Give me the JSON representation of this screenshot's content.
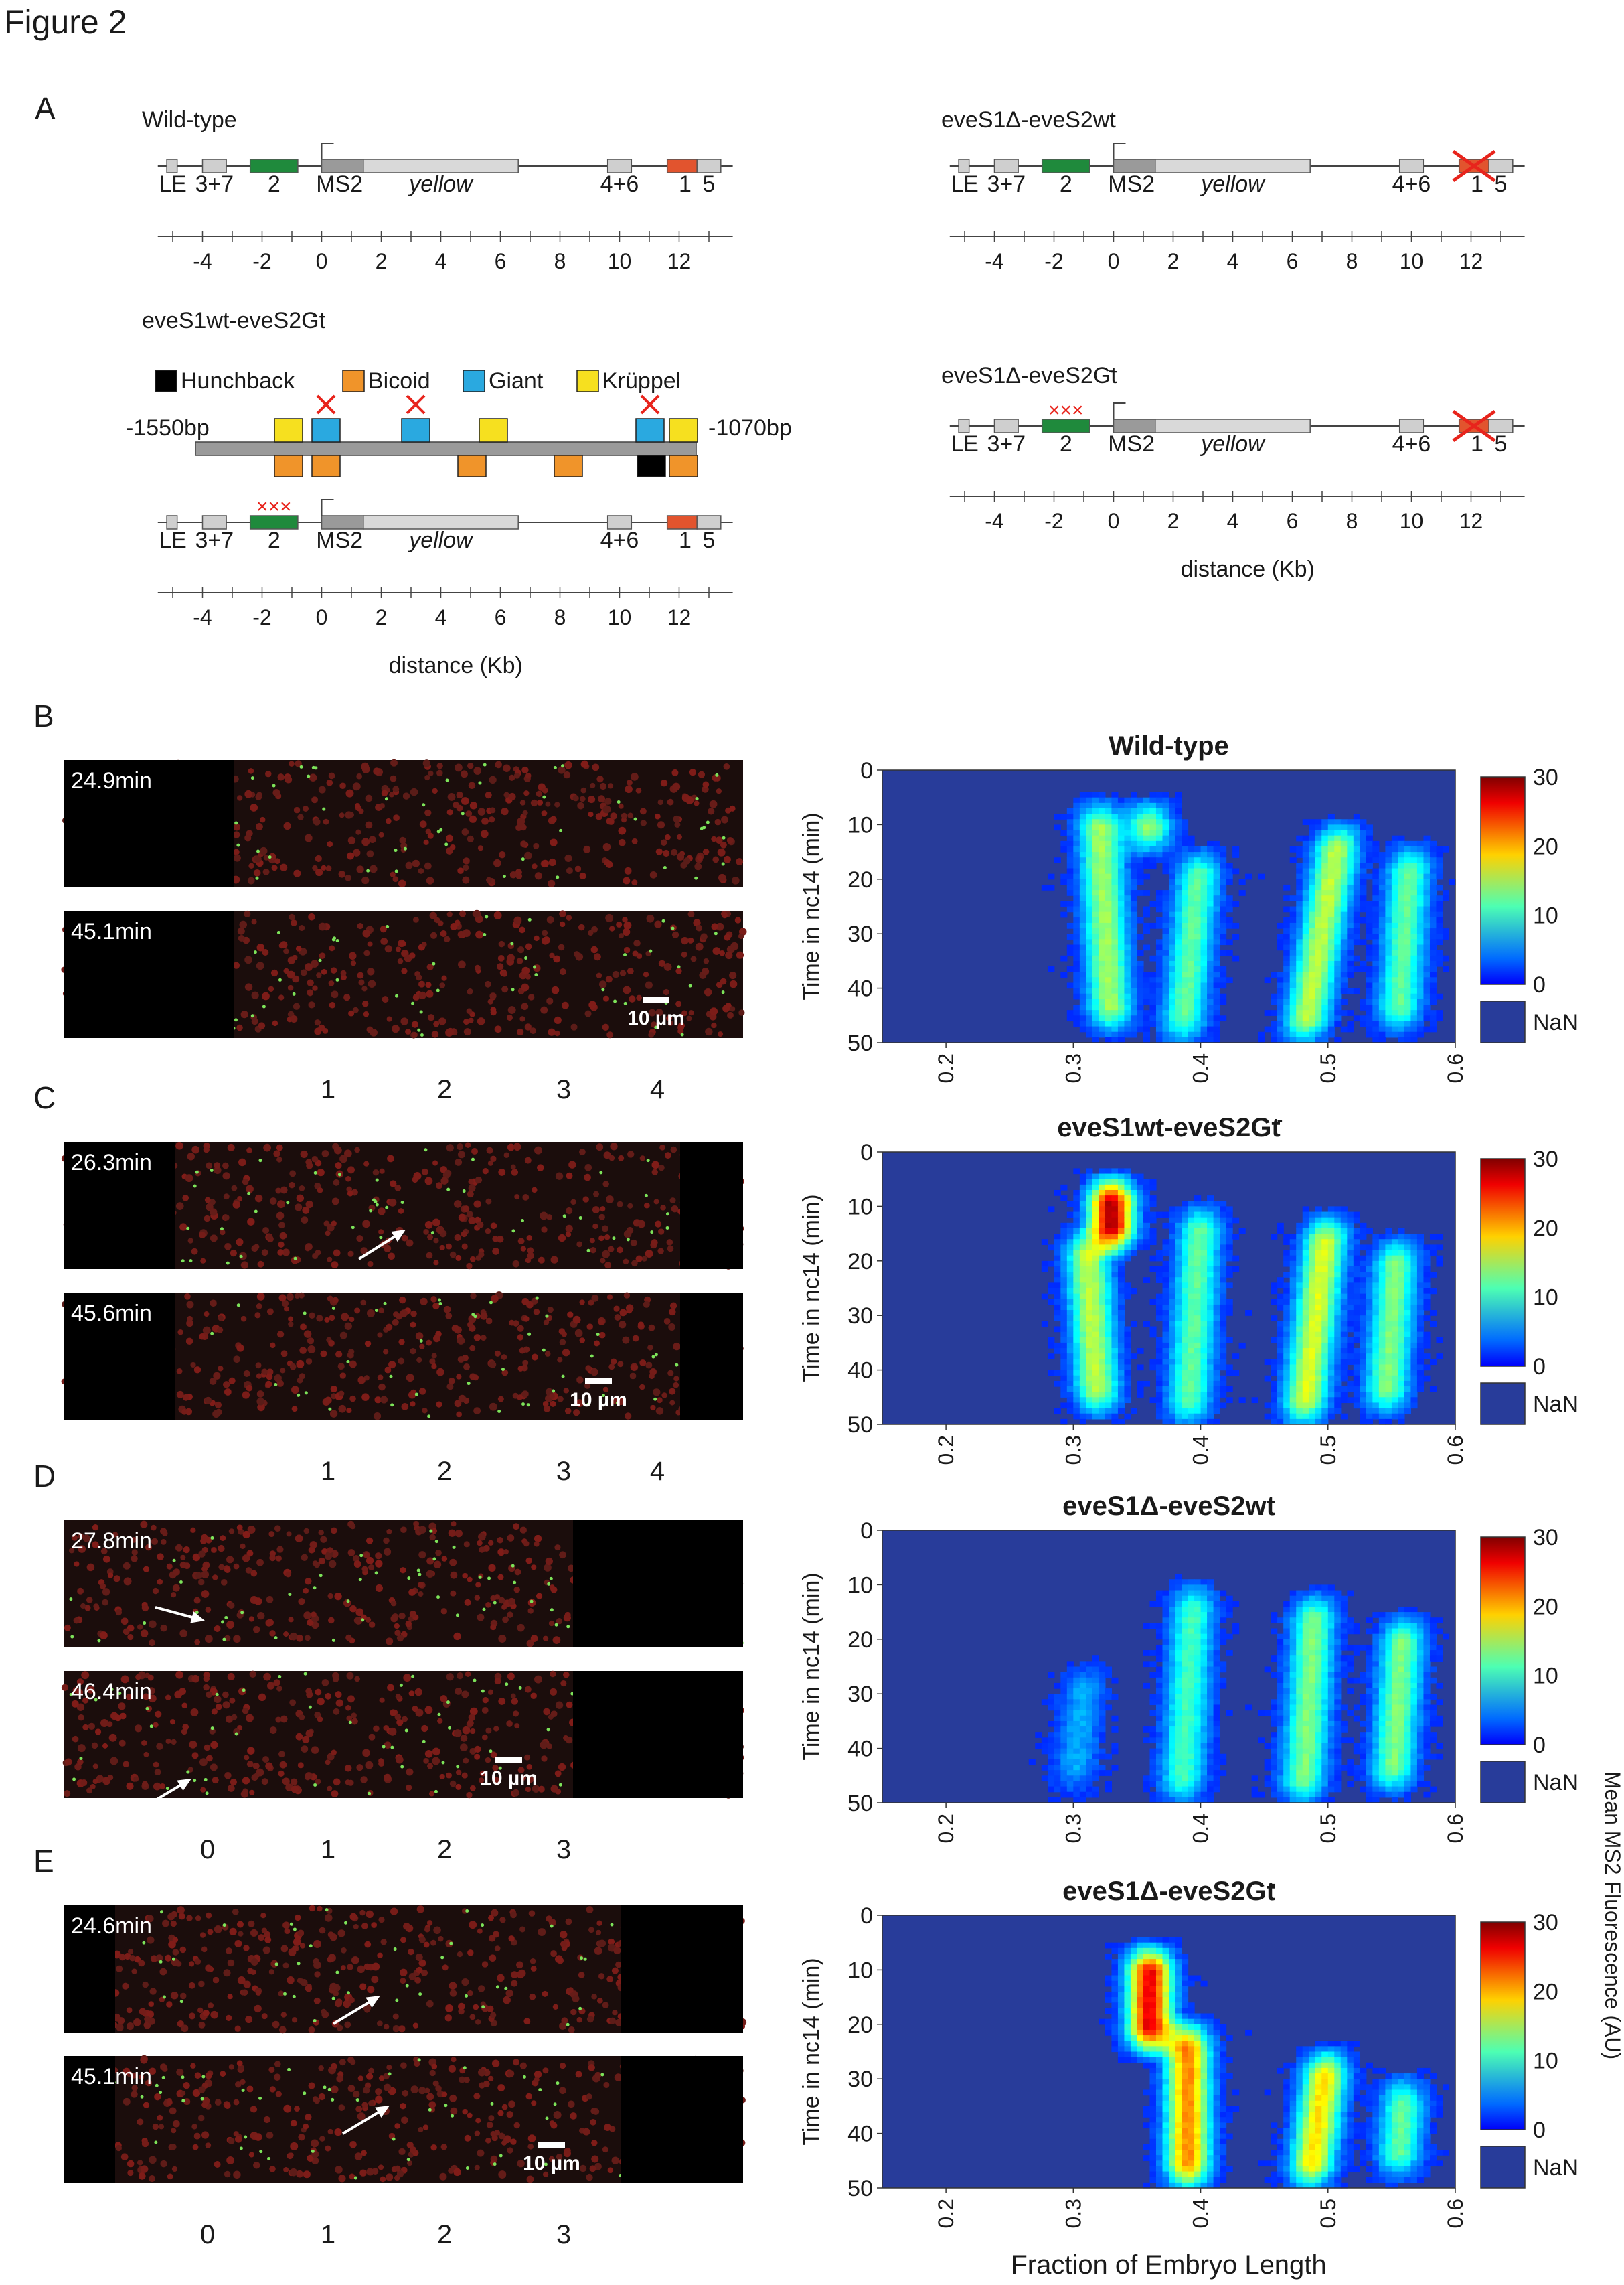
{
  "figure": {
    "title": "Figure 2"
  },
  "colors": {
    "stripe2": "#1f8a3c",
    "stripe1": "#e2542e",
    "enhancer_box": "#cfcfcf",
    "ms2_box": "#9a9a9a",
    "yellow_box": "#d9d9d9",
    "hunchback": "#000000",
    "bicoid": "#f0942a",
    "giant": "#2aa9e0",
    "kruppel": "#f6e01f",
    "cross": "#e8241c",
    "heatmap_bg": "#283c9a",
    "nan_swatch": "#283c9a"
  },
  "panel_a": {
    "letter": "A",
    "wildtype": {
      "title": "Wild-type"
    },
    "s1d_s2wt": {
      "title": "eveS1Δ-eveS2wt"
    },
    "s1wt_s2gt": {
      "title": "eveS1wt-eveS2Gt",
      "title_sup": "-"
    },
    "s1d_s2gt": {
      "title": "eveS1Δ-eveS2Gt",
      "title_sup": "-"
    },
    "gene_labels": {
      "le": "LE",
      "e37": "3+7",
      "e2": "2",
      "ms2": "MS2",
      "yellow": "yellow",
      "e46": "4+6",
      "e1": "1",
      "e5": "5"
    },
    "axis_ticks": [
      "-4",
      "-2",
      "0",
      "2",
      "4",
      "6",
      "8",
      "10",
      "12"
    ],
    "axis_label": "distance (Kb)",
    "legend": {
      "hunchback": "Hunchback",
      "bicoid": "Bicoid",
      "giant": "Giant",
      "kruppel": "Krüppel"
    },
    "enhancer_left": "-1550bp",
    "enhancer_right": "-1070bp",
    "cross_mark": "×××"
  },
  "panels": [
    {
      "letter": "B",
      "time_top": "24.9min",
      "time_bottom": "45.1min",
      "scale_label": "10 µm",
      "stripe_numbers": [
        "1",
        "2",
        "3",
        "4"
      ],
      "heatmap_title": "Wild-type",
      "heatmap_sup": "",
      "profile": "wildtype"
    },
    {
      "letter": "C",
      "time_top": "26.3min",
      "time_bottom": "45.6min",
      "scale_label": "10 µm",
      "stripe_numbers": [
        "1",
        "2",
        "3",
        "4"
      ],
      "heatmap_title": "eveS1wt-eveS2Gt",
      "heatmap_sup": "-",
      "profile": "s2gt"
    },
    {
      "letter": "D",
      "time_top": "27.8min",
      "time_bottom": "46.4min",
      "scale_label": "10 µm",
      "stripe_numbers": [
        "0",
        "1",
        "2",
        "3"
      ],
      "heatmap_title": "eveS1Δ-eveS2wt",
      "heatmap_sup": "",
      "profile": "s1d"
    },
    {
      "letter": "E",
      "time_top": "24.6min",
      "time_bottom": "45.1min",
      "scale_label": "10 µm",
      "stripe_numbers": [
        "0",
        "1",
        "2",
        "3"
      ],
      "heatmap_title": "eveS1Δ-eveS2Gt",
      "heatmap_sup": "-",
      "profile": "s1d_s2gt"
    }
  ],
  "heatmap_axes": {
    "ylabel": "Time in nc14 (min)",
    "xlabel": "Fraction of Embryo Length",
    "colorbar_label": "Mean MS2 Fluorescence (AU)",
    "nan_label": "NaN",
    "x_ticks": [
      "0.2",
      "0.3",
      "0.4",
      "0.5",
      "0.6"
    ],
    "y_ticks": [
      "0",
      "10",
      "20",
      "30",
      "40",
      "50"
    ],
    "colorbar_ticks": [
      "30",
      "20",
      "10",
      "0"
    ]
  },
  "chart_data": [
    {
      "type": "heatmap",
      "title": "Wild-type",
      "xlabel": "",
      "ylabel": "Time in nc14 (min)",
      "xlim": [
        0.15,
        0.6
      ],
      "ylim": [
        0,
        50
      ],
      "color_range": [
        0,
        30
      ],
      "stripes": [
        {
          "center_start": 0.32,
          "center_end": 0.33,
          "t_start": 6,
          "t_end": 48,
          "peak": 13
        },
        {
          "center_start": 0.36,
          "center_end": 0.36,
          "t_start": 6,
          "t_end": 15,
          "peak": 13
        },
        {
          "center_start": 0.4,
          "center_end": 0.385,
          "t_start": 15,
          "t_end": 50,
          "peak": 11
        },
        {
          "center_start": 0.51,
          "center_end": 0.48,
          "t_start": 10,
          "t_end": 50,
          "peak": 14
        },
        {
          "center_start": 0.565,
          "center_end": 0.555,
          "t_start": 14,
          "t_end": 48,
          "peak": 11
        }
      ]
    },
    {
      "type": "heatmap",
      "title": "eveS1wt-eveS2Gt-",
      "xlabel": "",
      "ylabel": "Time in nc14 (min)",
      "xlim": [
        0.15,
        0.6
      ],
      "ylim": [
        0,
        50
      ],
      "color_range": [
        0,
        30
      ],
      "stripes": [
        {
          "center_start": 0.33,
          "center_end": 0.33,
          "t_start": 5,
          "t_end": 18,
          "peak": 27
        },
        {
          "center_start": 0.31,
          "center_end": 0.32,
          "t_start": 15,
          "t_end": 48,
          "peak": 14
        },
        {
          "center_start": 0.4,
          "center_end": 0.39,
          "t_start": 10,
          "t_end": 50,
          "peak": 11
        },
        {
          "center_start": 0.5,
          "center_end": 0.48,
          "t_start": 12,
          "t_end": 50,
          "peak": 15
        },
        {
          "center_start": 0.555,
          "center_end": 0.545,
          "t_start": 16,
          "t_end": 48,
          "peak": 12
        }
      ]
    },
    {
      "type": "heatmap",
      "title": "eveS1Δ-eveS2wt",
      "xlabel": "",
      "ylabel": "Time in nc14 (min)",
      "xlim": [
        0.15,
        0.6
      ],
      "ylim": [
        0,
        50
      ],
      "color_range": [
        0,
        30
      ],
      "stripes": [
        {
          "center_start": 0.31,
          "center_end": 0.3,
          "t_start": 25,
          "t_end": 48,
          "peak": 5
        },
        {
          "center_start": 0.395,
          "center_end": 0.385,
          "t_start": 10,
          "t_end": 50,
          "peak": 10
        },
        {
          "center_start": 0.49,
          "center_end": 0.48,
          "t_start": 12,
          "t_end": 50,
          "peak": 12
        },
        {
          "center_start": 0.56,
          "center_end": 0.55,
          "t_start": 16,
          "t_end": 48,
          "peak": 12
        }
      ]
    },
    {
      "type": "heatmap",
      "title": "eveS1Δ-eveS2Gt-",
      "xlabel": "Fraction of Embryo Length",
      "ylabel": "Time in nc14 (min)",
      "xlim": [
        0.15,
        0.6
      ],
      "ylim": [
        0,
        50
      ],
      "color_range": [
        0,
        30
      ],
      "stripes": [
        {
          "center_start": 0.36,
          "center_end": 0.36,
          "t_start": 6,
          "t_end": 25,
          "peak": 25
        },
        {
          "center_start": 0.39,
          "center_end": 0.39,
          "t_start": 20,
          "t_end": 50,
          "peak": 20
        },
        {
          "center_start": 0.5,
          "center_end": 0.485,
          "t_start": 25,
          "t_end": 50,
          "peak": 17
        },
        {
          "center_start": 0.56,
          "center_end": 0.555,
          "t_start": 30,
          "t_end": 48,
          "peak": 11
        }
      ]
    }
  ]
}
